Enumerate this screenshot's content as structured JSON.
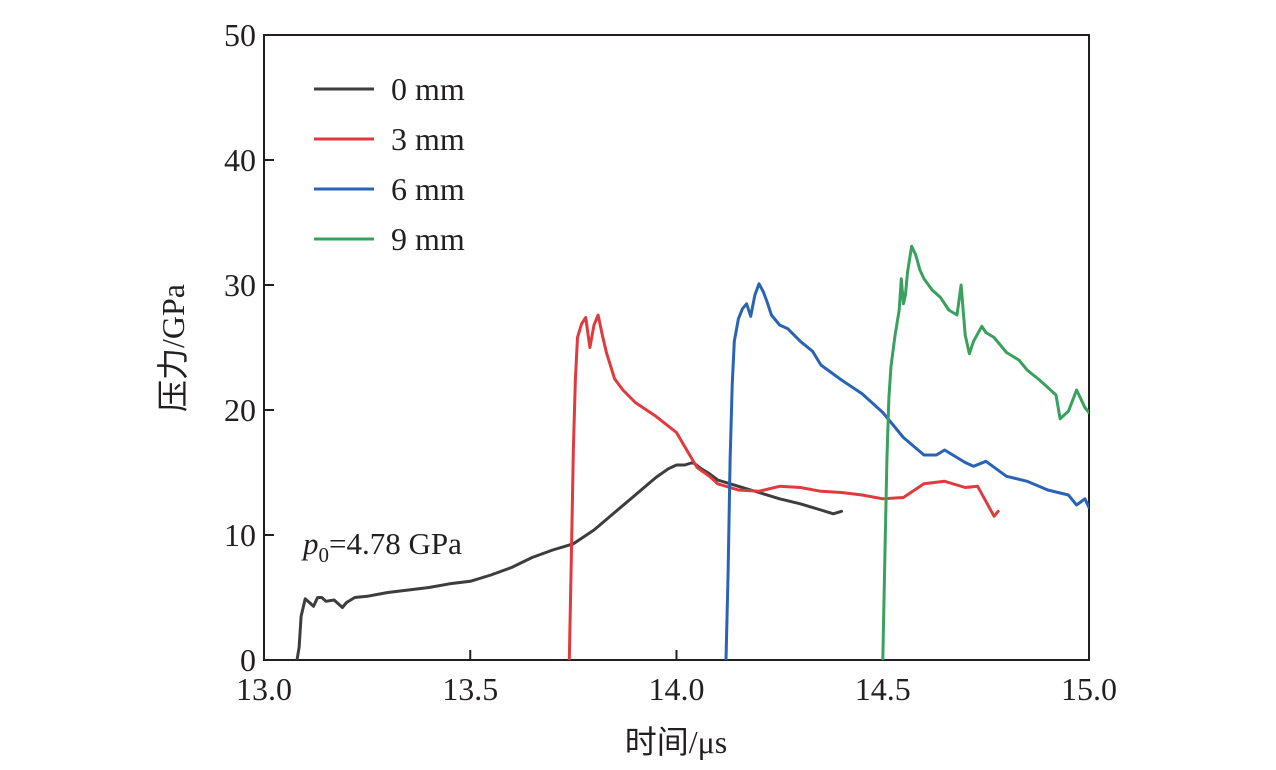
{
  "chart_data": {
    "type": "line",
    "xlabel": "时间/μs",
    "ylabel": "压力/GPa",
    "xlim": [
      13.0,
      15.0
    ],
    "ylim": [
      0,
      50
    ],
    "xticks": [
      "13.0",
      "13.5",
      "14.0",
      "14.5",
      "15.0"
    ],
    "yticks": [
      "0",
      "10",
      "20",
      "30",
      "40",
      "50"
    ],
    "legend_position": "top-left",
    "annotation": {
      "p_symbol": "p",
      "p_subscript": "0",
      "text": "=4.78 GPa",
      "x": 13.1,
      "y": 10
    },
    "series": [
      {
        "name": "0 mm",
        "color": "#3d3d3d",
        "x": [
          13.08,
          13.085,
          13.09,
          13.1,
          13.11,
          13.12,
          13.13,
          13.14,
          13.15,
          13.17,
          13.19,
          13.2,
          13.22,
          13.25,
          13.3,
          13.35,
          13.4,
          13.45,
          13.5,
          13.55,
          13.6,
          13.65,
          13.7,
          13.75,
          13.8,
          13.85,
          13.9,
          13.95,
          13.98,
          14.0,
          14.02,
          14.04,
          14.06,
          14.08,
          14.1,
          14.15,
          14.2,
          14.25,
          14.3,
          14.35,
          14.38,
          14.4
        ],
        "y": [
          0,
          1.0,
          3.5,
          4.9,
          4.6,
          4.3,
          5.0,
          5.0,
          4.7,
          4.8,
          4.2,
          4.6,
          5.0,
          5.1,
          5.4,
          5.6,
          5.8,
          6.1,
          6.3,
          6.8,
          7.4,
          8.2,
          8.8,
          9.3,
          10.4,
          11.8,
          13.2,
          14.6,
          15.3,
          15.6,
          15.6,
          15.8,
          15.3,
          14.9,
          14.4,
          13.9,
          13.4,
          12.9,
          12.5,
          12.0,
          11.7,
          11.9
        ]
      },
      {
        "name": "3 mm",
        "color": "#e03a3e",
        "x": [
          13.74,
          13.745,
          13.75,
          13.755,
          13.76,
          13.77,
          13.78,
          13.79,
          13.8,
          13.81,
          13.82,
          13.83,
          13.85,
          13.87,
          13.9,
          13.95,
          14.0,
          14.03,
          14.05,
          14.08,
          14.1,
          14.15,
          14.2,
          14.25,
          14.3,
          14.35,
          14.4,
          14.45,
          14.5,
          14.55,
          14.6,
          14.65,
          14.7,
          14.73,
          14.75,
          14.77,
          14.78
        ],
        "y": [
          0,
          8.0,
          17.0,
          22.5,
          25.8,
          26.9,
          27.4,
          25.0,
          26.8,
          27.6,
          26.0,
          24.6,
          22.5,
          21.6,
          20.6,
          19.5,
          18.2,
          16.5,
          15.4,
          14.7,
          14.1,
          13.6,
          13.5,
          13.9,
          13.8,
          13.5,
          13.4,
          13.2,
          12.9,
          13.0,
          14.1,
          14.3,
          13.8,
          13.9,
          12.7,
          11.5,
          11.9
        ]
      },
      {
        "name": "6 mm",
        "color": "#2a63b6",
        "x": [
          14.12,
          14.125,
          14.13,
          14.135,
          14.14,
          14.15,
          14.16,
          14.17,
          14.18,
          14.19,
          14.2,
          14.21,
          14.22,
          14.23,
          14.25,
          14.27,
          14.3,
          14.33,
          14.35,
          14.4,
          14.45,
          14.5,
          14.55,
          14.6,
          14.63,
          14.65,
          14.7,
          14.72,
          14.75,
          14.8,
          14.85,
          14.9,
          14.95,
          14.97,
          14.99,
          15.0
        ],
        "y": [
          0,
          7.0,
          16.0,
          22.0,
          25.5,
          27.3,
          28.1,
          28.5,
          27.5,
          29.2,
          30.1,
          29.5,
          28.6,
          27.6,
          26.8,
          26.5,
          25.5,
          24.7,
          23.6,
          22.4,
          21.3,
          19.8,
          17.8,
          16.4,
          16.4,
          16.8,
          15.8,
          15.5,
          15.9,
          14.7,
          14.3,
          13.6,
          13.2,
          12.4,
          12.9,
          12.2
        ]
      },
      {
        "name": "9 mm",
        "color": "#3aa05e",
        "x": [
          14.5,
          14.505,
          14.51,
          14.515,
          14.52,
          14.53,
          14.54,
          14.545,
          14.55,
          14.555,
          14.56,
          14.57,
          14.58,
          14.59,
          14.6,
          14.62,
          14.64,
          14.66,
          14.68,
          14.69,
          14.7,
          14.71,
          14.72,
          14.74,
          14.75,
          14.77,
          14.8,
          14.83,
          14.85,
          14.88,
          14.9,
          14.92,
          14.93,
          14.95,
          14.97,
          14.99,
          15.0
        ],
        "y": [
          0,
          8.0,
          16.0,
          21.0,
          23.5,
          26.0,
          28.0,
          30.5,
          28.5,
          29.2,
          31.0,
          33.1,
          32.4,
          31.2,
          30.5,
          29.6,
          29.0,
          28.0,
          27.6,
          30.0,
          26.0,
          24.5,
          25.5,
          26.7,
          26.2,
          25.8,
          24.6,
          24.0,
          23.2,
          22.4,
          21.8,
          21.2,
          19.3,
          19.9,
          21.6,
          20.2,
          19.8
        ]
      }
    ]
  }
}
